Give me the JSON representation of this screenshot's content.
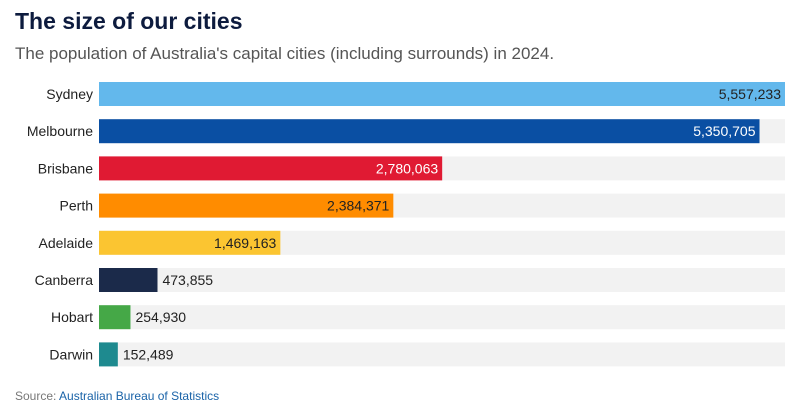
{
  "title": "The size of our cities",
  "subtitle": "The population of Australia's capital cities (including surrounds) in 2024.",
  "source": {
    "label": "Source:",
    "link_text": "Australian Bureau of Statistics"
  },
  "chart_data": {
    "type": "bar",
    "orientation": "horizontal",
    "categories": [
      "Sydney",
      "Melbourne",
      "Brisbane",
      "Perth",
      "Adelaide",
      "Canberra",
      "Hobart",
      "Darwin"
    ],
    "values": [
      5557233,
      5350705,
      2780063,
      2384371,
      1469163,
      473855,
      254930,
      152489
    ],
    "value_labels": [
      "5,557,233",
      "5,350,705",
      "2,780,063",
      "2,384,371",
      "1,469,163",
      "473,855",
      "254,930",
      "152,489"
    ],
    "colors": [
      "#63b8ec",
      "#0a4fa3",
      "#e01a33",
      "#ff8c00",
      "#fbc531",
      "#1b2a4a",
      "#45a847",
      "#1e8a8f"
    ],
    "label_colors": [
      "#222222",
      "#ffffff",
      "#ffffff",
      "#222222",
      "#222222",
      "#222222",
      "#222222",
      "#222222"
    ],
    "track_color": "#f2f2f2",
    "xlim": [
      0,
      5557233
    ],
    "grid": false,
    "legend": "none"
  }
}
